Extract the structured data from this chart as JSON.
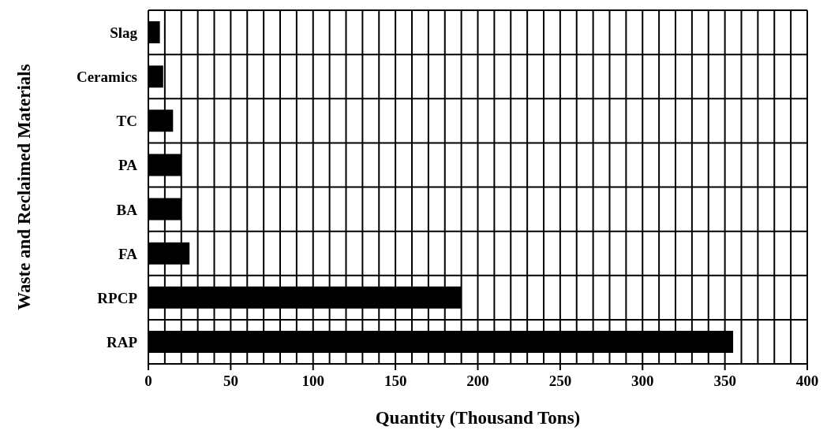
{
  "chart_data": {
    "type": "bar",
    "orientation": "horizontal",
    "xlabel": "Quantity (Thousand Tons)",
    "ylabel": "Waste and Reclaimed Materials",
    "categories": [
      "Slag",
      "Ceramics",
      "TC",
      "PA",
      "BA",
      "FA",
      "RPCP",
      "RAP"
    ],
    "values": [
      7,
      9,
      15,
      20,
      20,
      25,
      190,
      355
    ],
    "color": "#000000",
    "xlim": [
      0,
      400
    ],
    "xticks": [
      0,
      {
        "value": 10,
        "label": null
      },
      {
        "value": 20,
        "label": null
      },
      {
        "value": 30,
        "label": null
      },
      {
        "value": 40,
        "label": null
      },
      50,
      {
        "value": 60,
        "label": null
      },
      {
        "value": 70,
        "label": null
      },
      {
        "value": 80,
        "label": null
      },
      {
        "value": 90,
        "label": null
      },
      100,
      {
        "value": 110,
        "label": null
      },
      {
        "value": 120,
        "label": null
      },
      {
        "value": 130,
        "label": null
      },
      {
        "value": 140,
        "label": null
      },
      150,
      {
        "value": 160,
        "label": null
      },
      {
        "value": 170,
        "label": null
      },
      {
        "value": 180,
        "label": null
      },
      {
        "value": 190,
        "label": null
      },
      200,
      {
        "value": 210,
        "label": null
      },
      {
        "value": 220,
        "label": null
      },
      {
        "value": 230,
        "label": null
      },
      {
        "value": 240,
        "label": null
      },
      250,
      {
        "value": 260,
        "label": null
      },
      {
        "value": 270,
        "label": null
      },
      {
        "value": 280,
        "label": null
      },
      {
        "value": 290,
        "label": null
      },
      300,
      {
        "value": 310,
        "label": null
      },
      {
        "value": 320,
        "label": null
      },
      {
        "value": 330,
        "label": null
      },
      {
        "value": 340,
        "label": null
      },
      350,
      {
        "value": 360,
        "label": null
      },
      {
        "value": 370,
        "label": null
      },
      {
        "value": 380,
        "label": null
      },
      {
        "value": 390,
        "label": null
      },
      400
    ],
    "grid": true
  }
}
